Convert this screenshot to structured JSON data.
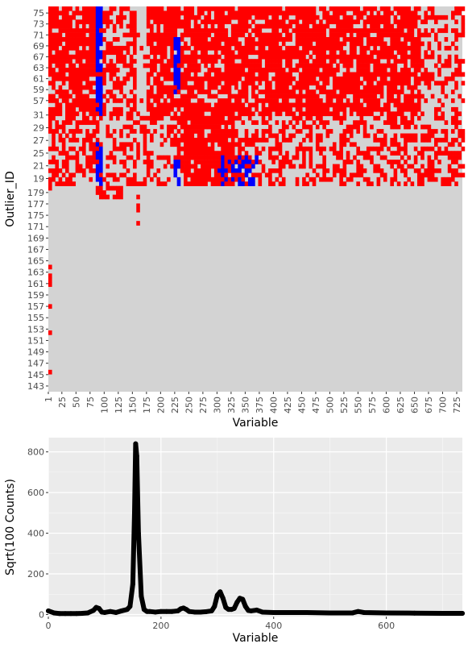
{
  "colors": {
    "panel_bg": "#ebebeb",
    "grid_major": "#ffffff",
    "heatmap_na": "#d3d3d3",
    "heatmap_high": "#ff0000",
    "heatmap_low": "#0000ff",
    "line": "#000000"
  },
  "chart_data": [
    {
      "type": "heatmap",
      "xlabel": "Variable",
      "ylabel": "Outlier_ID",
      "x_range": [
        1,
        735
      ],
      "x_tick_labels": [
        "1",
        "25",
        "50",
        "75",
        "100",
        "125",
        "150",
        "175",
        "200",
        "225",
        "250",
        "275",
        "300",
        "325",
        "350",
        "375",
        "400",
        "425",
        "450",
        "475",
        "500",
        "525",
        "550",
        "575",
        "600",
        "625",
        "650",
        "675",
        "700",
        "725"
      ],
      "y_tick_labels": [
        "75",
        "73",
        "71",
        "69",
        "67",
        "63",
        "61",
        "59",
        "57",
        "31",
        "29",
        "27",
        "25",
        "21",
        "19",
        "179",
        "177",
        "175",
        "171",
        "169",
        "167",
        "165",
        "163",
        "161",
        "159",
        "157",
        "155",
        "153",
        "151",
        "149",
        "147",
        "145",
        "143"
      ],
      "categories": {
        "high": "red",
        "low": "blue",
        "normal": "lightgrey"
      },
      "bands": [
        {
          "rows": "75-57 (upper group)",
          "x_from": 1,
          "x_to": 735,
          "dominant": "high",
          "blue_columns": [
            [
              80,
              92
            ],
            [
              220,
              232
            ]
          ],
          "grey_gaps": [
            [
              90,
              150
            ],
            [
              155,
              165
            ]
          ]
        },
        {
          "rows": "31-19 (middle group)",
          "x_from": 1,
          "x_to": 735,
          "dominant": "high",
          "blue_columns": [
            [
              80,
              95
            ],
            [
              225,
              232
            ],
            [
              300,
              370
            ]
          ]
        },
        {
          "rows": "179-143 (lower group)",
          "x_from": 1,
          "x_to": 735,
          "dominant": "normal",
          "sparse_red_columns": [
            [
              85,
              90
            ],
            [
              155,
              160
            ]
          ]
        }
      ]
    },
    {
      "type": "line",
      "xlabel": "Variable",
      "ylabel": "Sqrt(100 Counts)",
      "xlim": [
        0,
        735
      ],
      "ylim": [
        -10,
        870
      ],
      "x_ticks": [
        0,
        200,
        400,
        600
      ],
      "y_ticks": [
        0,
        200,
        400,
        600,
        800
      ],
      "grid": true,
      "x": [
        0,
        10,
        20,
        30,
        40,
        50,
        60,
        70,
        80,
        85,
        90,
        95,
        100,
        110,
        120,
        130,
        140,
        145,
        150,
        153,
        155,
        157,
        160,
        165,
        170,
        175,
        180,
        190,
        200,
        210,
        220,
        230,
        235,
        240,
        245,
        250,
        260,
        270,
        280,
        290,
        295,
        300,
        305,
        310,
        315,
        320,
        325,
        330,
        335,
        340,
        345,
        350,
        355,
        360,
        370,
        380,
        400,
        450,
        500,
        540,
        550,
        560,
        600,
        650,
        700,
        735
      ],
      "y": [
        18,
        8,
        5,
        5,
        5,
        5,
        6,
        8,
        20,
        35,
        30,
        12,
        10,
        15,
        10,
        18,
        25,
        40,
        150,
        500,
        840,
        780,
        400,
        90,
        25,
        15,
        15,
        12,
        15,
        15,
        15,
        18,
        28,
        32,
        25,
        15,
        12,
        12,
        14,
        18,
        40,
        95,
        112,
        80,
        35,
        25,
        25,
        30,
        60,
        80,
        75,
        40,
        20,
        18,
        22,
        12,
        10,
        10,
        8,
        8,
        15,
        10,
        8,
        7,
        6,
        6
      ]
    }
  ]
}
